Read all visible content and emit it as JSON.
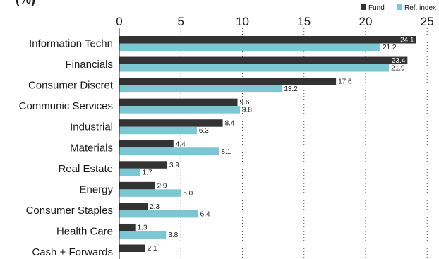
{
  "title_fragment": "(%)",
  "chart_data": {
    "type": "bar",
    "orientation": "horizontal",
    "title": "",
    "xlabel": "",
    "ylabel": "",
    "xlim": [
      0,
      25
    ],
    "x_ticks": [
      0,
      5,
      10,
      15,
      20,
      25
    ],
    "grid": "vertical dotted",
    "legend_position": "top-right",
    "categories": [
      "Information Techn",
      "Financials",
      "Consumer Discret",
      "Communic Services",
      "Industrial",
      "Materials",
      "Real Estate",
      "Energy",
      "Consumer Staples",
      "Health Care",
      "Cash + Forwards"
    ],
    "series": [
      {
        "name": "Fund",
        "color": "#333333",
        "values": [
          24.1,
          23.4,
          17.6,
          9.6,
          8.4,
          4.4,
          3.9,
          2.9,
          2.3,
          1.3,
          2.1
        ]
      },
      {
        "name": "Ref. index",
        "color": "#7cc7d4",
        "values": [
          21.2,
          21.9,
          13.2,
          9.8,
          6.3,
          8.1,
          1.7,
          5.0,
          6.4,
          3.8,
          null
        ]
      }
    ],
    "data_labels": [
      [
        "24.1",
        "23.4",
        "17.6",
        "9.6",
        "8.4",
        "4.4",
        "3.9",
        "2.9",
        "2.3",
        "1.3",
        "2.1"
      ],
      [
        "21.2",
        "21.9",
        "13.2",
        "9.8",
        "6.3",
        "8.1",
        "1.7",
        "5.0",
        "6.4",
        "3.8",
        ""
      ]
    ]
  }
}
